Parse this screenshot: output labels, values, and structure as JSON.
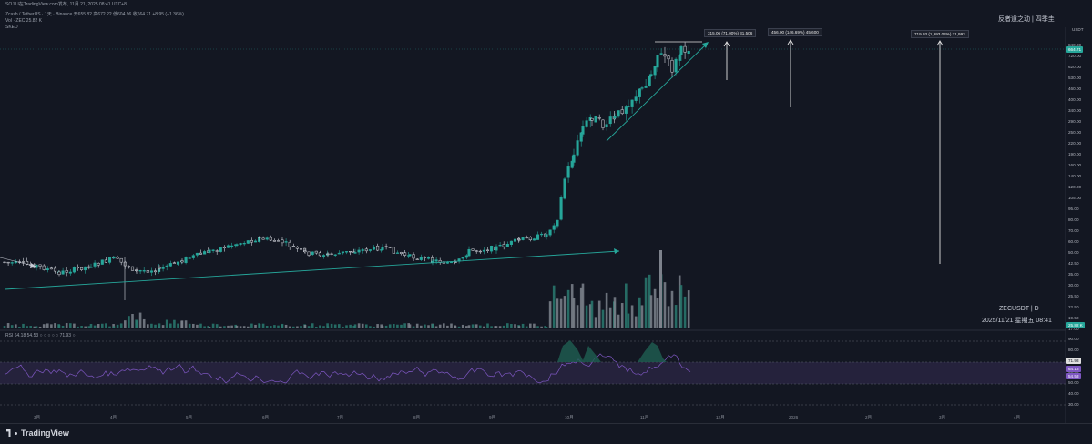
{
  "header": {
    "line1": "SOJIU在TradingView.com发布, 11月 21, 2025 08:41 UTC+8",
    "line2": "Zcash / TetherUS · 1天 · Binance   开655.82  高672.22  低604.96  收664.71  +8.95 (+1.36%)",
    "line3": "Vol · ZEC  25.82 K",
    "line4": "SKED"
  },
  "watermark": {
    "author": "反者道之动 | 四季圭"
  },
  "symbol_label": "ZECUSDT | D",
  "datetime_label": "2025/11/21 星期五 08:41",
  "currency_label": "USDT",
  "price_axis": {
    "ticks": [
      "840.00",
      "720.00",
      "620.00",
      "530.00",
      "460.00",
      "400.00",
      "340.00",
      "290.00",
      "250.00",
      "220.00",
      "190.00",
      "160.00",
      "140.00",
      "120.00",
      "105.00",
      "95.00",
      "80.00",
      "70.00",
      "60.00",
      "50.00",
      "42.50",
      "35.00",
      "30.00",
      "25.50",
      "22.50",
      "19.50",
      "17.00"
    ],
    "last_price": "664.71",
    "volume_tag": "25.82 K"
  },
  "callouts": [
    {
      "text": "315.06 (71.00%) 31,506"
    },
    {
      "text": "456.00 (146.69%) 45,600"
    },
    {
      "text": "719.93 (1,993.03%) 71,993"
    }
  ],
  "rsi": {
    "label": "RSI  64.18  54.53  ○ ○ ○ ○ ○  71.93  ○",
    "ticks": [
      "90.00",
      "80.00",
      "70.00",
      "60.00",
      "50.00",
      "40.00",
      "30.00"
    ],
    "value_tags": [
      "71.93",
      "64.18",
      "54.53"
    ]
  },
  "months": [
    "3月",
    "4月",
    "5月",
    "6月",
    "7月",
    "8月",
    "9月",
    "10月",
    "11月",
    "12月",
    "2026",
    "2月",
    "3月",
    "4月"
  ],
  "footer": {
    "brand": "TradingView"
  },
  "colors": {
    "background": "#131722",
    "up": "#26a69a",
    "down": "#ef5350",
    "trendline": "#26a69a",
    "rsi_line": "#7e57c2",
    "rsi_band": "#2a2644",
    "arrow": "#e0e0e0"
  }
}
